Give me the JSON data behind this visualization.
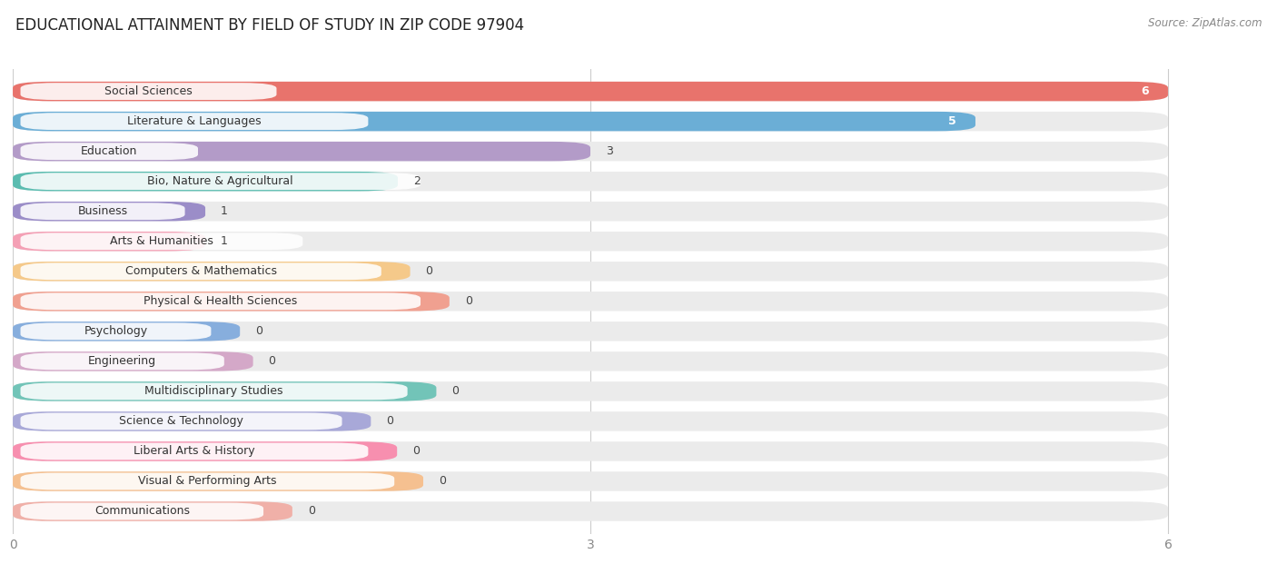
{
  "title": "EDUCATIONAL ATTAINMENT BY FIELD OF STUDY IN ZIP CODE 97904",
  "source": "Source: ZipAtlas.com",
  "categories": [
    "Social Sciences",
    "Literature & Languages",
    "Education",
    "Bio, Nature & Agricultural",
    "Business",
    "Arts & Humanities",
    "Computers & Mathematics",
    "Physical & Health Sciences",
    "Psychology",
    "Engineering",
    "Multidisciplinary Studies",
    "Science & Technology",
    "Liberal Arts & History",
    "Visual & Performing Arts",
    "Communications"
  ],
  "values": [
    6,
    5,
    3,
    2,
    1,
    1,
    0,
    0,
    0,
    0,
    0,
    0,
    0,
    0,
    0
  ],
  "bar_colors": [
    "#E8736C",
    "#6BAED6",
    "#B39BC8",
    "#5BBCB0",
    "#9B8DC8",
    "#F4A0B5",
    "#F5C98A",
    "#F0A090",
    "#87AEDD",
    "#D4A8C8",
    "#72C4B8",
    "#A8A8D8",
    "#F78FAF",
    "#F5C090",
    "#F0B0A8"
  ],
  "xlim": [
    0,
    6.5
  ],
  "xtick_vals": [
    0,
    3,
    6
  ],
  "bar_bg_color": "#ebebeb",
  "title_fontsize": 12,
  "label_fontsize": 9,
  "value_fontsize": 9,
  "source_fontsize": 8.5
}
